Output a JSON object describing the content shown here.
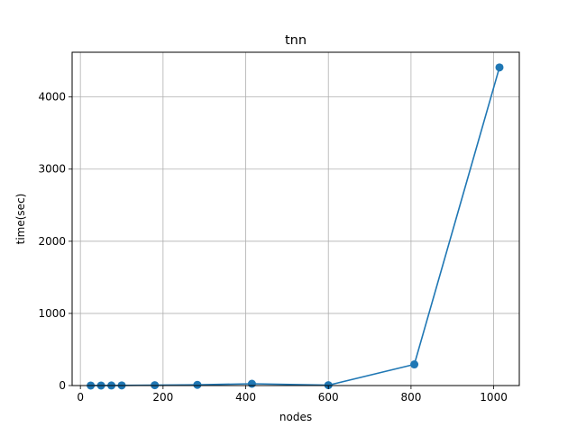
{
  "chart_data": {
    "type": "line",
    "title": "tnn",
    "xlabel": "nodes",
    "ylabel": "time(sec)",
    "xlim": [
      -20,
      1062
    ],
    "ylim": [
      0,
      4620
    ],
    "x_ticks": [
      0,
      200,
      400,
      600,
      800,
      1000
    ],
    "y_ticks": [
      0,
      1000,
      2000,
      3000,
      4000
    ],
    "x_tick_labels": [
      "0",
      "200",
      "400",
      "600",
      "800",
      "1000"
    ],
    "y_tick_labels": [
      "0",
      "1000",
      "2000",
      "3000",
      "4000"
    ],
    "grid": true,
    "legend": "none",
    "series": [
      {
        "color": "#1f77b4",
        "marker": "circle",
        "x": [
          25,
          50,
          75,
          100,
          180,
          283,
          415,
          600,
          808,
          1014
        ],
        "y": [
          0.2,
          0.5,
          1,
          2,
          5,
          10,
          25,
          5,
          293,
          4410
        ]
      }
    ]
  }
}
